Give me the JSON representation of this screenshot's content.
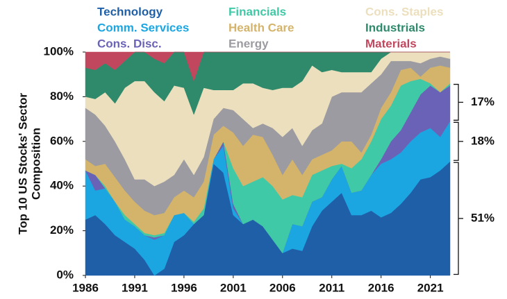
{
  "chart_data": {
    "type": "stacked_area",
    "ylabel": [
      "Top 10 US Stocks' Sector",
      "Composition"
    ],
    "x": [
      1986,
      1987,
      1988,
      1989,
      1990,
      1991,
      1992,
      1993,
      1994,
      1995,
      1996,
      1997,
      1998,
      1999,
      2000,
      2001,
      2002,
      2003,
      2004,
      2005,
      2006,
      2007,
      2008,
      2009,
      2010,
      2011,
      2012,
      2013,
      2014,
      2015,
      2016,
      2017,
      2018,
      2019,
      2020,
      2021,
      2022,
      2023
    ],
    "xlim": [
      1986,
      2023
    ],
    "xticks": [
      1986,
      1991,
      1996,
      2001,
      2006,
      2011,
      2016,
      2021
    ],
    "ylim": [
      0,
      100
    ],
    "yticks": [
      {
        "value": 0,
        "label": "0%"
      },
      {
        "value": 20,
        "label": "20%"
      },
      {
        "value": 40,
        "label": "40%"
      },
      {
        "value": 60,
        "label": "60%"
      },
      {
        "value": 80,
        "label": "80%"
      },
      {
        "value": 100,
        "label": "100%"
      }
    ],
    "series": [
      {
        "name": "Technology",
        "color": "#1f5fa8",
        "values": [
          25,
          27,
          23,
          18,
          15,
          12,
          7,
          0,
          3,
          15,
          18,
          23,
          27,
          50,
          46,
          27,
          23,
          25,
          22,
          16,
          10,
          12,
          11,
          22,
          29,
          33,
          37,
          27,
          27,
          29,
          26,
          28,
          32,
          37,
          43,
          44,
          47,
          51
        ]
      },
      {
        "name": "Comm. Services",
        "color": "#1ba6e2",
        "values": [
          22,
          11,
          16,
          15,
          10,
          10,
          11,
          16,
          15,
          12,
          10,
          0,
          0,
          2,
          12,
          3,
          0,
          0,
          0,
          0,
          0,
          11,
          11,
          11,
          6,
          10,
          12,
          10,
          11,
          16,
          24,
          24,
          23,
          23,
          21,
          22,
          15,
          18
        ]
      },
      {
        "name": "Cons. Disc.",
        "color": "#6a62b6",
        "values": [
          0,
          7,
          0,
          0,
          0,
          0,
          0,
          1,
          0,
          0,
          0,
          0,
          0,
          0,
          2,
          2,
          0,
          0,
          0,
          0,
          0,
          0,
          0,
          0,
          0,
          0,
          0,
          0,
          0,
          0,
          2,
          8,
          10,
          13,
          17,
          19,
          20,
          16
        ]
      },
      {
        "name": "Financials",
        "color": "#3fc9a6",
        "values": [
          0,
          0,
          1,
          0,
          2,
          1,
          1,
          1,
          1,
          0,
          0,
          1,
          3,
          0,
          0,
          16,
          17,
          17,
          22,
          24,
          24,
          13,
          13,
          12,
          12,
          6,
          1,
          11,
          14,
          15,
          18,
          16,
          20,
          14,
          7,
          1,
          0,
          1
        ]
      },
      {
        "name": "Health Care",
        "color": "#d4b36a",
        "values": [
          5,
          4,
          10,
          11,
          11,
          10,
          10,
          9,
          9,
          8,
          10,
          11,
          12,
          11,
          7,
          16,
          18,
          21,
          18,
          14,
          11,
          16,
          10,
          7,
          7,
          7,
          10,
          12,
          3,
          3,
          5,
          6,
          7,
          6,
          1,
          7,
          12,
          7
        ]
      },
      {
        "name": "Energy",
        "color": "#9b9ba1",
        "values": [
          23,
          23,
          17,
          16,
          14,
          10,
          14,
          13,
          14,
          10,
          14,
          10,
          11,
          7,
          8,
          10,
          12,
          3,
          6,
          12,
          17,
          14,
          13,
          13,
          14,
          24,
          22,
          22,
          27,
          23,
          15,
          14,
          4,
          3,
          6,
          4,
          4,
          4
        ]
      },
      {
        "name": "Cons. Staples",
        "color": "#ecdfbd",
        "values": [
          5,
          7,
          15,
          17,
          32,
          44,
          44,
          42,
          36,
          40,
          32,
          27,
          31,
          13,
          8,
          9,
          16,
          20,
          16,
          17,
          22,
          18,
          29,
          29,
          23,
          12,
          9,
          9,
          9,
          5,
          7,
          4,
          4,
          4,
          5,
          3,
          2,
          3
        ]
      },
      {
        "name": "Industrials",
        "color": "#2e8a6b",
        "values": [
          13,
          13,
          13,
          15,
          12,
          13,
          13,
          15,
          17,
          15,
          16,
          15,
          16,
          17,
          17,
          17,
          14,
          14,
          16,
          17,
          16,
          16,
          13,
          6,
          9,
          8,
          9,
          9,
          9,
          9,
          3,
          0,
          0,
          0,
          0,
          0,
          0,
          0
        ]
      },
      {
        "name": "Materials",
        "color": "#c0475d",
        "values": [
          7,
          8,
          5,
          8,
          4,
          0,
          0,
          3,
          5,
          0,
          0,
          13,
          0,
          0,
          0,
          0,
          0,
          0,
          0,
          0,
          0,
          0,
          0,
          0,
          0,
          0,
          0,
          0,
          0,
          0,
          0,
          0,
          0,
          0,
          0,
          0,
          0,
          0
        ]
      }
    ],
    "annotations": [
      {
        "label": "51%",
        "value": 51
      },
      {
        "label": "18%",
        "value": 18
      },
      {
        "label": "17%",
        "value": 17
      }
    ]
  }
}
